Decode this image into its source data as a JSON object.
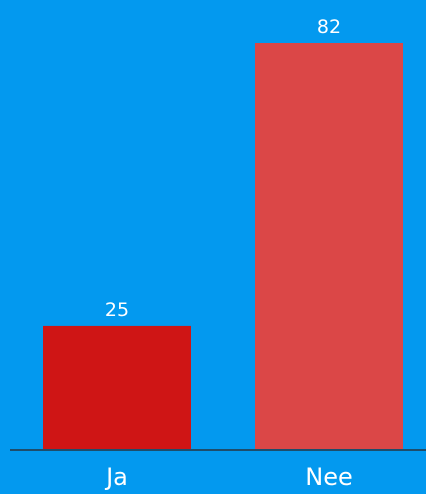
{
  "colors": {
    "background": "#0399EF",
    "bar_ja": "#CF1515",
    "bar_nee": "#DB4747",
    "axis": "#1E4D6B",
    "text": "#FFFFFF"
  },
  "chart_data": {
    "type": "bar",
    "categories": [
      "Ja",
      "Nee"
    ],
    "values": [
      25,
      82
    ],
    "value_labels": [
      "25",
      "82"
    ],
    "title": "",
    "xlabel": "",
    "ylabel": "",
    "ylim": [
      0,
      82
    ],
    "grid": false,
    "legend": "none"
  }
}
